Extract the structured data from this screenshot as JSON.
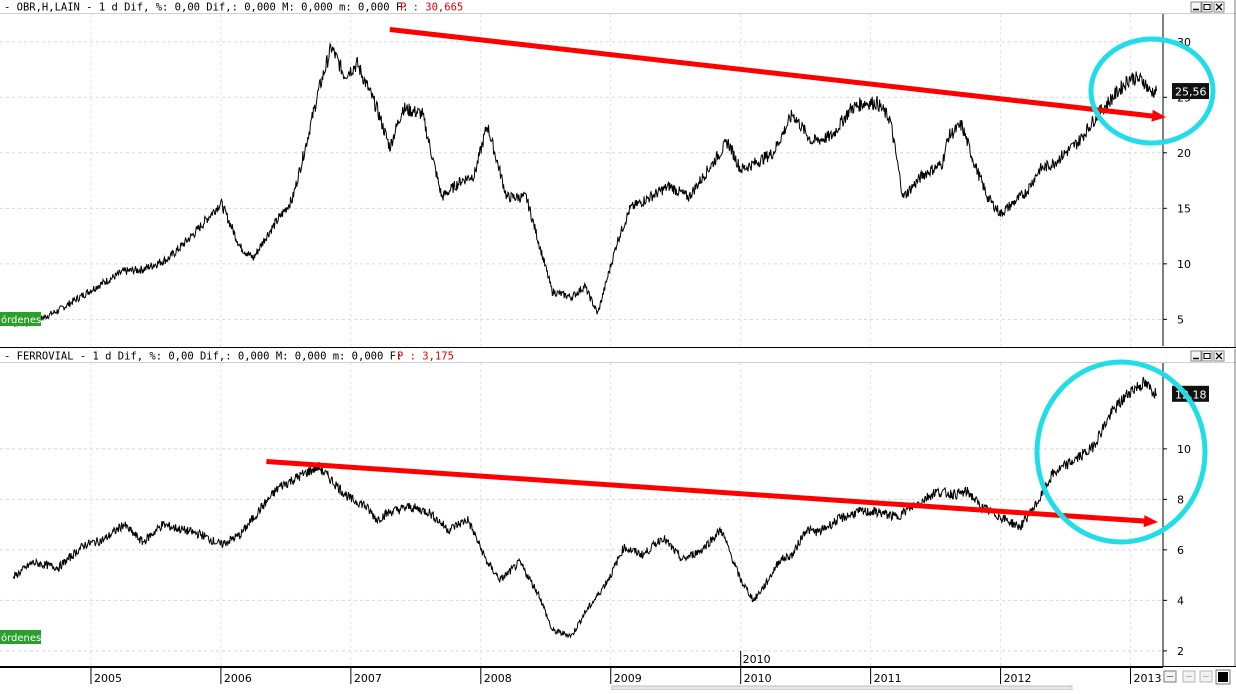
{
  "panels": [
    {
      "id": "top",
      "header": "- OBR,H,LAIN -  1 d Dif, %: 0,00 Dif,: 0,000 M: 0,000 m: 0,000 F:",
      "price_label": "P : 30,665",
      "last_price_badge": "25,56",
      "orders_label": "órdenes",
      "window_controls": [
        "minimize",
        "restore",
        "close"
      ]
    },
    {
      "id": "bottom",
      "header": "- FERROVIAL -  1 d Dif, %: 0,00 Dif,: 0,000 M: 0,000 m: 0,000 F:",
      "price_label": "P : 3,175",
      "last_price_badge": "12,18",
      "orders_label": "órdenes",
      "window_controls": [
        "minimize",
        "restore",
        "close"
      ]
    }
  ],
  "x_axis": {
    "labels": [
      "2005",
      "2006",
      "2007",
      "2008",
      "2009",
      "2010",
      "2011",
      "2012",
      "2013"
    ],
    "cursor_label": "2010"
  },
  "colors": {
    "price_line": "#000000",
    "trendline": "#ff0000",
    "highlight_circle": "#22dde8",
    "orders_badge_bg": "#2aa02a",
    "price_header_text": "#e00000"
  },
  "chart_data": [
    {
      "type": "line",
      "title": "OBR,H,LAIN",
      "y_ticks": [
        5,
        10,
        15,
        20,
        25,
        30
      ],
      "ylim": [
        2.6,
        32.5
      ],
      "xlim": [
        2004.3,
        2013.25
      ],
      "grid": true,
      "series": [
        {
          "name": "OBR,H,LAIN",
          "x": [
            2004.4,
            2004.55,
            2004.75,
            2004.9,
            2005.05,
            2005.25,
            2005.4,
            2005.6,
            2005.8,
            2006.0,
            2006.15,
            2006.25,
            2006.35,
            2006.55,
            2006.65,
            2006.75,
            2006.85,
            2006.95,
            2007.05,
            2007.2,
            2007.3,
            2007.4,
            2007.55,
            2007.7,
            2007.85,
            2007.95,
            2008.05,
            2008.2,
            2008.35,
            2008.55,
            2008.7,
            2008.8,
            2008.9,
            2009.05,
            2009.15,
            2009.3,
            2009.45,
            2009.6,
            2009.75,
            2009.9,
            2010.0,
            2010.1,
            2010.25,
            2010.4,
            2010.55,
            2010.7,
            2010.85,
            2010.95,
            2011.05,
            2011.15,
            2011.25,
            2011.4,
            2011.55,
            2011.6,
            2011.7,
            2011.8,
            2011.9,
            2012.0,
            2012.1,
            2012.2,
            2012.3,
            2012.4,
            2012.5,
            2012.6,
            2012.75,
            2012.9,
            2013.0,
            2013.1,
            2013.15,
            2013.2
          ],
          "y": [
            4.6,
            4.7,
            5.8,
            6.9,
            8.0,
            9.3,
            9.5,
            10.5,
            12.8,
            15.5,
            11.5,
            10.5,
            12.5,
            15.8,
            20.5,
            25.5,
            29.5,
            27.0,
            28.0,
            24.0,
            20.5,
            24.0,
            23.5,
            16.0,
            17.5,
            18.0,
            22.5,
            16.0,
            16.0,
            7.5,
            7.0,
            8.0,
            5.5,
            12.0,
            15.0,
            16.0,
            17.0,
            16.0,
            18.5,
            21.0,
            18.5,
            19.0,
            20.0,
            23.5,
            21.0,
            21.5,
            24.0,
            24.5,
            24.5,
            23.0,
            16.0,
            18.0,
            19.0,
            21.5,
            22.5,
            19.0,
            16.0,
            14.5,
            15.5,
            16.5,
            18.5,
            19.0,
            20.0,
            21.0,
            23.5,
            25.5,
            26.8,
            26.5,
            25.5,
            25.56
          ]
        },
        {
          "name": "trendline",
          "x": [
            2007.3,
            2013.25
          ],
          "y": [
            31.1,
            23.2
          ]
        }
      ]
    },
    {
      "type": "line",
      "title": "FERROVIAL",
      "y_ticks": [
        2,
        4,
        6,
        8,
        10
      ],
      "ylim": [
        1.4,
        13.4
      ],
      "xlim": [
        2004.3,
        2013.25
      ],
      "grid": true,
      "series": [
        {
          "name": "FERROVIAL",
          "x": [
            2004.4,
            2004.55,
            2004.75,
            2004.95,
            2005.1,
            2005.25,
            2005.4,
            2005.55,
            2005.7,
            2005.85,
            2006.0,
            2006.15,
            2006.3,
            2006.45,
            2006.6,
            2006.75,
            2006.9,
            2007.0,
            2007.1,
            2007.2,
            2007.3,
            2007.45,
            2007.6,
            2007.75,
            2007.9,
            2008.05,
            2008.15,
            2008.3,
            2008.45,
            2008.55,
            2008.7,
            2008.8,
            2008.9,
            2009.0,
            2009.1,
            2009.25,
            2009.4,
            2009.55,
            2009.7,
            2009.85,
            2010.0,
            2010.1,
            2010.2,
            2010.3,
            2010.4,
            2010.5,
            2010.6,
            2010.75,
            2010.9,
            2011.05,
            2011.2,
            2011.35,
            2011.5,
            2011.65,
            2011.75,
            2011.85,
            2012.0,
            2012.15,
            2012.3,
            2012.4,
            2012.55,
            2012.7,
            2012.85,
            2013.0,
            2013.1,
            2013.2
          ],
          "y": [
            4.9,
            5.5,
            5.3,
            6.2,
            6.4,
            7.0,
            6.3,
            7.0,
            6.8,
            6.6,
            6.2,
            6.6,
            7.6,
            8.5,
            8.9,
            9.3,
            8.5,
            8.0,
            7.8,
            7.2,
            7.5,
            7.7,
            7.5,
            6.8,
            7.2,
            5.5,
            4.8,
            5.5,
            4.2,
            2.8,
            2.6,
            3.5,
            4.2,
            5.0,
            6.1,
            5.8,
            6.5,
            5.6,
            6.0,
            6.8,
            4.8,
            4.0,
            4.7,
            5.6,
            5.8,
            6.8,
            6.7,
            7.2,
            7.5,
            7.5,
            7.3,
            7.8,
            8.3,
            8.2,
            8.3,
            7.7,
            7.3,
            6.9,
            8.0,
            9.0,
            9.5,
            10.0,
            11.4,
            12.3,
            12.6,
            12.18
          ]
        },
        {
          "name": "trendline",
          "x": [
            2006.35,
            2013.25
          ],
          "y": [
            9.5,
            7.1
          ]
        }
      ]
    }
  ]
}
